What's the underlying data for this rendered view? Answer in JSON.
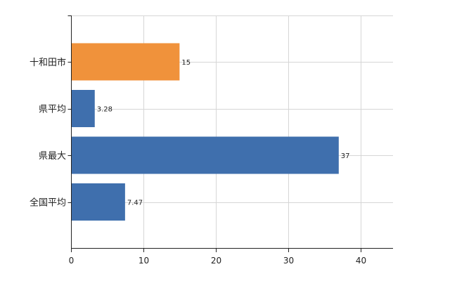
{
  "chart_data": {
    "type": "bar",
    "orientation": "horizontal",
    "categories": [
      "十和田市",
      "県平均",
      "県最大",
      "全国平均"
    ],
    "values": [
      15,
      3.28,
      37,
      7.47
    ],
    "value_labels": [
      "15",
      "3.28",
      "37",
      "7.47"
    ],
    "bar_colors": [
      "#f0923b",
      "#3f6fad",
      "#3f6fad",
      "#3f6fad"
    ],
    "xlim": [
      0,
      44.5
    ],
    "xticks": [
      0,
      10,
      20,
      30,
      40
    ],
    "grid": true,
    "title": "",
    "xlabel": "",
    "ylabel": ""
  }
}
